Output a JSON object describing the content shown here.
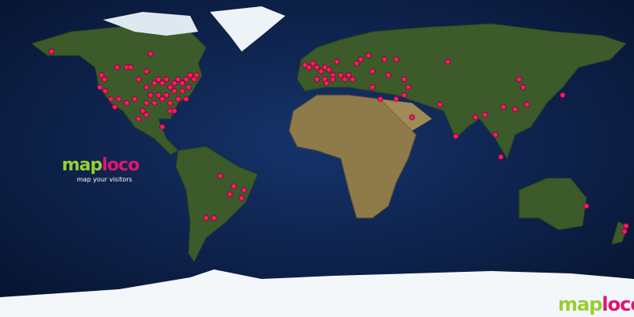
{
  "logo": {
    "text_a": "map",
    "text_b": "loco",
    "tagline": "map your visitors"
  },
  "watermark": {
    "text_a": "map",
    "text_b": "loco"
  },
  "colors": {
    "ocean": "#0b1d45",
    "marker": "#ff1a66",
    "logo_green": "#9acd32",
    "logo_pink": "#e0156f"
  },
  "projection": "equirectangular",
  "visitors": [
    [
      60.8,
      -150.8
    ],
    [
      47.3,
      -122.4
    ],
    [
      45,
      -120.6
    ],
    [
      40.5,
      -123.3
    ],
    [
      38.3,
      -120.2
    ],
    [
      33.8,
      -117
    ],
    [
      33.8,
      -112.5
    ],
    [
      51.8,
      -113.4
    ],
    [
      51.8,
      -108
    ],
    [
      51.8,
      -105.8
    ],
    [
      49.5,
      -96.8
    ],
    [
      59.4,
      -94.5
    ],
    [
      45,
      -101.3
    ],
    [
      40.5,
      -96.8
    ],
    [
      42.8,
      -92.3
    ],
    [
      45,
      -90
    ],
    [
      42.8,
      -87.8
    ],
    [
      45,
      -85.5
    ],
    [
      40.5,
      -83.3
    ],
    [
      42.8,
      -81
    ],
    [
      45,
      -78.8
    ],
    [
      42.8,
      -76.5
    ],
    [
      45,
      -74.3
    ],
    [
      47.3,
      -72
    ],
    [
      45,
      -69.8
    ],
    [
      36,
      -94.5
    ],
    [
      36,
      -90
    ],
    [
      36,
      -85.5
    ],
    [
      38.3,
      -81
    ],
    [
      38.3,
      -76.5
    ],
    [
      31.5,
      -96.8
    ],
    [
      31.5,
      -92.3
    ],
    [
      33.8,
      -87.8
    ],
    [
      31.5,
      -83.3
    ],
    [
      27,
      -99
    ],
    [
      22.5,
      -101.3
    ],
    [
      24.8,
      -96.8
    ],
    [
      18,
      -87.8
    ],
    [
      27,
      -83.3
    ],
    [
      27,
      -81
    ],
    [
      33.8,
      -103.5
    ],
    [
      31.5,
      -108
    ],
    [
      29.3,
      -114.8
    ],
    [
      33.8,
      -78.8
    ],
    [
      33.8,
      -74.3
    ],
    [
      40.5,
      -72.9
    ],
    [
      47.3,
      -68.4
    ],
    [
      -9.9,
      -54.9
    ],
    [
      -20.3,
      -49.5
    ],
    [
      -15.8,
      -47.3
    ],
    [
      -22.5,
      -42.8
    ],
    [
      -18,
      -41.4
    ],
    [
      -33.8,
      -63
    ],
    [
      -33.8,
      -58.5
    ],
    [
      53.1,
      -6.8
    ],
    [
      51.8,
      -4.5
    ],
    [
      54,
      -2.3
    ],
    [
      51.8,
      0
    ],
    [
      49.5,
      2.3
    ],
    [
      51.8,
      4.5
    ],
    [
      50.4,
      6.8
    ],
    [
      47.3,
      9
    ],
    [
      54.9,
      11.3
    ],
    [
      45,
      9
    ],
    [
      45,
      4.5
    ],
    [
      45,
      0
    ],
    [
      42.8,
      5.4
    ],
    [
      47.3,
      13.5
    ],
    [
      45,
      15.8
    ],
    [
      47.3,
      18
    ],
    [
      45,
      20.3
    ],
    [
      54,
      22.5
    ],
    [
      56.3,
      24.8
    ],
    [
      58.5,
      29.3
    ],
    [
      49.5,
      31.5
    ],
    [
      56.3,
      38.3
    ],
    [
      56.3,
      45
    ],
    [
      47.3,
      40.5
    ],
    [
      40.5,
      31.5
    ],
    [
      33.8,
      36
    ],
    [
      33.8,
      45
    ],
    [
      36,
      49.5
    ],
    [
      40.5,
      51.8
    ],
    [
      45,
      49.5
    ],
    [
      23.4,
      54
    ],
    [
      30.6,
      69.8
    ],
    [
      54.9,
      74.3
    ],
    [
      23.4,
      90
    ],
    [
      12.6,
      78.8
    ],
    [
      24.8,
      95.4
    ],
    [
      13.5,
      101.3
    ],
    [
      0.9,
      104.4
    ],
    [
      29.3,
      105.8
    ],
    [
      27.9,
      112.5
    ],
    [
      40.5,
      117
    ],
    [
      30.6,
      119.3
    ],
    [
      45,
      114.8
    ],
    [
      36,
      139.5
    ],
    [
      -27,
      153
    ],
    [
      -38.3,
      175.5
    ],
    [
      -41.4,
      174.6
    ]
  ]
}
